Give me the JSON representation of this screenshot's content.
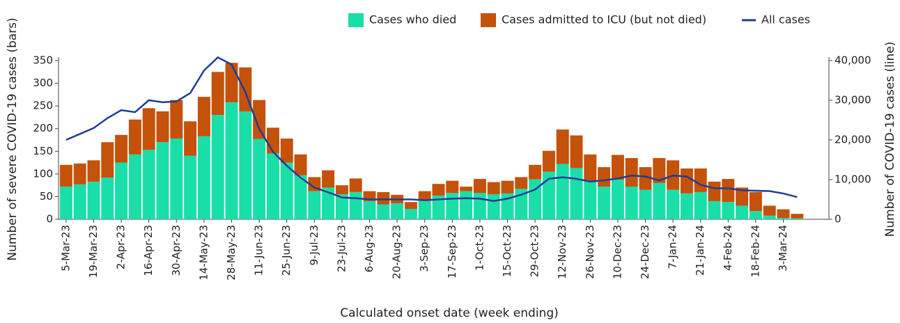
{
  "chart_data": {
    "type": "bar",
    "xlabel": "Calculated onset date (week ending)",
    "ylabel": "Number of severe COVID-19 cases (bars)",
    "y2label": "Number of COVID-19 cases (line)",
    "categories": [
      "5-Mar-23",
      null,
      "19-Mar-23",
      null,
      "2-Apr-23",
      null,
      "16-Apr-23",
      null,
      "30-Apr-23",
      null,
      "14-May-23",
      null,
      "28-May-23",
      null,
      "11-Jun-23",
      null,
      "25-Jun-23",
      null,
      "9-Jul-23",
      null,
      "23-Jul-23",
      null,
      "6-Aug-23",
      null,
      "20-Aug-23",
      null,
      "3-Sep-23",
      null,
      "17-Sep-23",
      null,
      "1-Oct-23",
      null,
      "15-Oct-23",
      null,
      "29-Oct-23",
      null,
      "12-Nov-23",
      null,
      "26-Nov-23",
      null,
      "10-Dec-23",
      null,
      "24-Dec-23",
      null,
      "7-Jan-24",
      null,
      "21-Jan-24",
      null,
      "4-Feb-24",
      null,
      "18-Feb-24",
      null,
      "3-Mar-24",
      null
    ],
    "series": [
      {
        "name": "Cases who died",
        "type": "bar",
        "color": "#1adea8",
        "values": [
          72,
          77,
          83,
          92,
          125,
          143,
          153,
          170,
          178,
          140,
          183,
          230,
          258,
          238,
          177,
          145,
          125,
          97,
          62,
          70,
          55,
          60,
          40,
          33,
          35,
          23,
          43,
          52,
          58,
          62,
          58,
          55,
          57,
          67,
          88,
          105,
          122,
          113,
          85,
          72,
          87,
          72,
          65,
          80,
          65,
          57,
          60,
          40,
          38,
          30,
          18,
          8,
          3,
          2
        ]
      },
      {
        "name": "Cases admitted to ICU (but not died)",
        "type": "bar",
        "color": "#c4520a",
        "values": [
          48,
          46,
          47,
          78,
          61,
          77,
          92,
          68,
          85,
          76,
          87,
          95,
          87,
          97,
          86,
          57,
          53,
          46,
          31,
          38,
          20,
          30,
          22,
          27,
          19,
          15,
          19,
          26,
          27,
          10,
          31,
          27,
          28,
          26,
          32,
          46,
          76,
          72,
          58,
          43,
          55,
          63,
          50,
          55,
          65,
          55,
          52,
          43,
          51,
          40,
          42,
          22,
          19,
          10
        ]
      },
      {
        "name": "All cases",
        "type": "line",
        "axis": "y2",
        "color": "#1f3c95",
        "values": [
          20000,
          21500,
          23000,
          25500,
          27500,
          27000,
          30000,
          29500,
          29700,
          31800,
          37500,
          40800,
          39000,
          32000,
          22800,
          17000,
          13500,
          10500,
          8000,
          6800,
          5500,
          5300,
          5000,
          5000,
          5000,
          5000,
          4800,
          5000,
          5200,
          5300,
          5200,
          4600,
          5200,
          6200,
          7500,
          10200,
          10600,
          10200,
          9500,
          9800,
          10300,
          11000,
          10800,
          9800,
          11000,
          10800,
          8700,
          7800,
          7800,
          7300,
          7200,
          7100,
          6500,
          5600
        ]
      }
    ],
    "ylim": [
      0,
      350
    ],
    "yticks": [
      0,
      50,
      100,
      150,
      200,
      250,
      300,
      350
    ],
    "y2lim": [
      0,
      40000
    ],
    "y2ticks": [
      0,
      {
        "value": 10000,
        "label": "10,000"
      },
      {
        "value": 20000,
        "label": "20,000"
      },
      {
        "value": 30000,
        "label": "30,000"
      },
      {
        "value": 40000,
        "label": "40,000"
      }
    ],
    "stacked": true,
    "grid": false,
    "legend": "top"
  }
}
